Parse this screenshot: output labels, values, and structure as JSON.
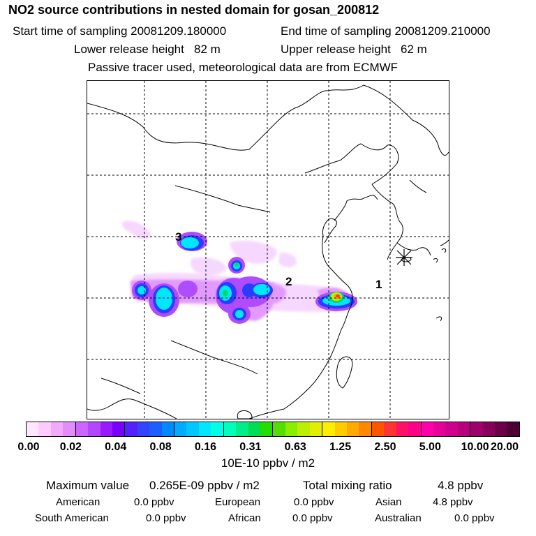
{
  "header": {
    "title": "NO2 source contributions in nested domain for gosan_200812",
    "start_label": "Start time of sampling 20081209.180000",
    "end_label": "End time of sampling 20081209.210000",
    "lower_label": "Lower release height   82 m",
    "upper_label": "Upper release height   62 m",
    "note": "Passive tracer used, meteorological data are from ECMWF"
  },
  "map": {
    "source_labels": [
      "1",
      "2",
      "3"
    ]
  },
  "legend": {
    "ticks": [
      "0.00",
      "0.02",
      "0.04",
      "0.08",
      "0.16",
      "0.31",
      "0.63",
      "1.25",
      "2.50",
      "5.00",
      "10.00",
      "20.00"
    ],
    "units": "10E-10 ppbv / m2",
    "colors": [
      "#ffe8ff",
      "#ffccff",
      "#f2aaff",
      "#e38cff",
      "#cc66ff",
      "#b347ff",
      "#9a1aff",
      "#7a00ff",
      "#5522ff",
      "#3344ff",
      "#1d5eff",
      "#0088ff",
      "#00aaff",
      "#00c8ff",
      "#00e8ff",
      "#00ffe6",
      "#00ffbb",
      "#00ee88",
      "#00dd55",
      "#22dd00",
      "#55dd00",
      "#88ee00",
      "#bbee00",
      "#e4ee00",
      "#ffee00",
      "#ffcc00",
      "#ffaa00",
      "#ff8800",
      "#ff5500",
      "#ff3333",
      "#ff1166",
      "#ff0088",
      "#ff00aa",
      "#e8009a",
      "#d0008e",
      "#b8007e",
      "#9e006c",
      "#84005a",
      "#6a0048",
      "#4e0034"
    ]
  },
  "stats": {
    "max_label": "Maximum value",
    "max_value": "0.265E-09 ppbv / m2",
    "total_label": "Total mixing ratio",
    "total_value": "4.8 ppbv",
    "regions": [
      {
        "name": "American",
        "value": "0.0 ppbv"
      },
      {
        "name": "European",
        "value": "0.0 ppbv"
      },
      {
        "name": "Asian",
        "value": "4.8 ppbv"
      },
      {
        "name": "South American",
        "value": "0.0 ppbv"
      },
      {
        "name": "African",
        "value": "0.0 ppbv"
      },
      {
        "name": "Australian",
        "value": "0.0 ppbv"
      }
    ]
  }
}
